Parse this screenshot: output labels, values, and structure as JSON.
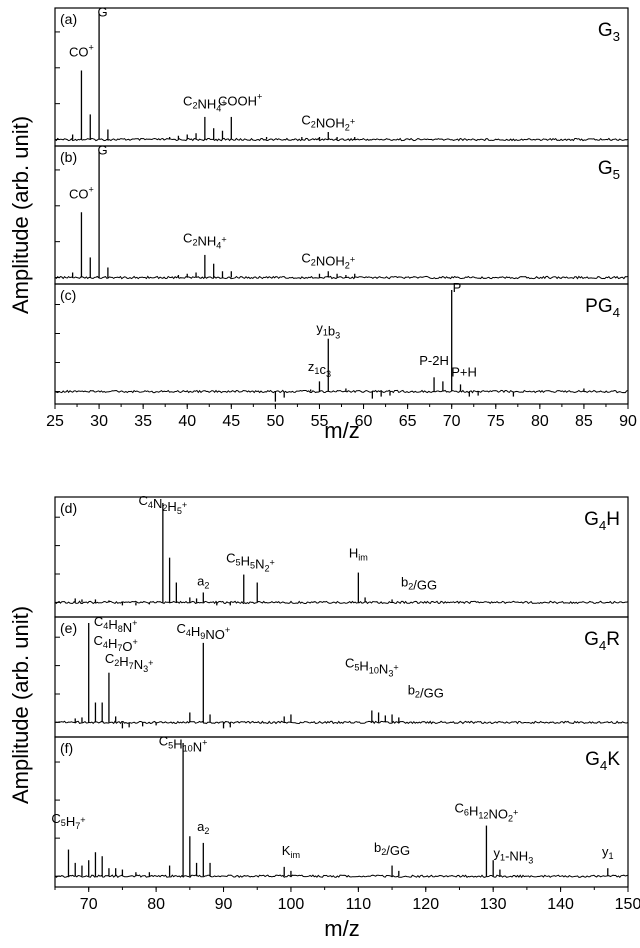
{
  "y_axis_label": "Amplitude (arb. unit)",
  "x_axis_label": "m/z",
  "chart_data": [
    {
      "type": "line",
      "xlim": [
        25,
        90
      ],
      "x_ticks": [
        25,
        30,
        35,
        40,
        45,
        50,
        55,
        60,
        65,
        70,
        75,
        80,
        85,
        90
      ],
      "panels": [
        {
          "label": "(a)",
          "sample": "G",
          "sample_sub": "3",
          "baseline": 0.02,
          "peaks": [
            [
              27,
              0.04
            ],
            [
              28,
              0.55
            ],
            [
              29,
              0.2
            ],
            [
              30,
              1.0
            ],
            [
              31,
              0.08
            ],
            [
              38,
              0.02
            ],
            [
              39,
              0.03
            ],
            [
              40,
              0.04
            ],
            [
              41,
              0.05
            ],
            [
              42,
              0.18
            ],
            [
              43,
              0.09
            ],
            [
              44,
              0.07
            ],
            [
              45,
              0.18
            ],
            [
              49,
              0.02
            ],
            [
              53,
              0.02
            ],
            [
              55,
              0.02
            ],
            [
              56,
              0.06
            ],
            [
              57,
              0.02
            ],
            [
              59,
              0.02
            ]
          ],
          "annotations": [
            {
              "x": 28,
              "y": 0.66,
              "text": "CO",
              "sup": "+"
            },
            {
              "x": 30.4,
              "y": 0.98,
              "text": "G"
            },
            {
              "x": 42,
              "y": 0.27,
              "text": "C",
              "sub": "2",
              "text2": "NH",
              "sub2": "4",
              "sup": "+"
            },
            {
              "x": 46,
              "y": 0.27,
              "text": "COOH",
              "sup": "+"
            },
            {
              "x": 56,
              "y": 0.12,
              "text": "C",
              "sub": "2",
              "text2": "NOH",
              "sub2": "2",
              "sup": "+"
            }
          ]
        },
        {
          "label": "(b)",
          "sample": "G",
          "sample_sub": "5",
          "baseline": 0.02,
          "peaks": [
            [
              27,
              0.04
            ],
            [
              28,
              0.52
            ],
            [
              29,
              0.16
            ],
            [
              30,
              1.0
            ],
            [
              31,
              0.08
            ],
            [
              39,
              0.02
            ],
            [
              40,
              0.03
            ],
            [
              41,
              0.04
            ],
            [
              42,
              0.18
            ],
            [
              43,
              0.11
            ],
            [
              44,
              0.05
            ],
            [
              45,
              0.05
            ],
            [
              55,
              0.03
            ],
            [
              56,
              0.05
            ],
            [
              57,
              0.03
            ],
            [
              58,
              0.02
            ],
            [
              59,
              0.03
            ]
          ],
          "annotations": [
            {
              "x": 28,
              "y": 0.63,
              "text": "CO",
              "sup": "+"
            },
            {
              "x": 30.4,
              "y": 0.98,
              "text": "G"
            },
            {
              "x": 42,
              "y": 0.28,
              "text": "C",
              "sub": "2",
              "text2": "NH",
              "sub2": "4",
              "sup": "+"
            },
            {
              "x": 56,
              "y": 0.12,
              "text": "C",
              "sub": "2",
              "text2": "NOH",
              "sub2": "2",
              "sup": "+"
            }
          ]
        },
        {
          "label": "(c)",
          "sample": "PG",
          "sample_sub": "4",
          "baseline": 0.08,
          "peaks": [
            [
              50,
              -0.1
            ],
            [
              51,
              -0.06
            ],
            [
              54,
              0.02
            ],
            [
              55,
              0.1
            ],
            [
              56,
              0.52
            ],
            [
              58,
              0.03
            ],
            [
              61,
              -0.07
            ],
            [
              62,
              -0.05
            ],
            [
              63,
              -0.04
            ],
            [
              68,
              0.14
            ],
            [
              69,
              0.1
            ],
            [
              70,
              1.0
            ],
            [
              71,
              0.07
            ],
            [
              72,
              -0.05
            ],
            [
              73,
              -0.04
            ],
            [
              77,
              -0.05
            ],
            [
              85,
              0.03
            ]
          ],
          "annotations": [
            {
              "x": 56,
              "y": 0.58,
              "text": "y",
              "sub": "1",
              "text2": "b",
              "sub2": "3"
            },
            {
              "x": 55,
              "y": 0.2,
              "text": "z",
              "sub": "1",
              "text2": "c",
              "sub2": "3"
            },
            {
              "x": 68,
              "y": 0.26,
              "text": "P-2H"
            },
            {
              "x": 70.6,
              "y": 0.98,
              "text": "P"
            },
            {
              "x": 71.4,
              "y": 0.15,
              "text": "P+H"
            }
          ]
        }
      ]
    },
    {
      "type": "line",
      "xlim": [
        65,
        150
      ],
      "x_ticks": [
        70,
        80,
        90,
        100,
        110,
        120,
        130,
        140,
        150
      ],
      "panels": [
        {
          "label": "(d)",
          "sample": "G",
          "sample_sub": "4",
          "sample2": "H",
          "baseline": 0.1,
          "peaks": [
            [
              68,
              0.04
            ],
            [
              69,
              0.03
            ],
            [
              71,
              0.03
            ],
            [
              73,
              0.02
            ],
            [
              75,
              -0.03
            ],
            [
              77,
              -0.03
            ],
            [
              79,
              -0.02
            ],
            [
              81,
              1.0
            ],
            [
              82,
              0.45
            ],
            [
              83,
              0.2
            ],
            [
              85,
              0.05
            ],
            [
              86,
              0.04
            ],
            [
              87,
              0.1
            ],
            [
              89,
              -0.03
            ],
            [
              91,
              -0.03
            ],
            [
              93,
              0.28
            ],
            [
              95,
              0.2
            ],
            [
              110,
              0.3
            ],
            [
              111,
              0.05
            ],
            [
              115,
              0.03
            ]
          ],
          "annotations": [
            {
              "x": 81,
              "y": 0.98,
              "text": "C",
              "sub": "4",
              "text2": "N",
              "sub2": "2",
              "text3": "H",
              "sub3": "5",
              "sup": "+"
            },
            {
              "x": 87,
              "y": 0.17,
              "text": "a",
              "sub": "2"
            },
            {
              "x": 94,
              "y": 0.4,
              "text": "C",
              "sub": "5",
              "text2": "H",
              "sub2": "5",
              "text3": "N",
              "sub3": "2",
              "sup": "+"
            },
            {
              "x": 110,
              "y": 0.45,
              "text": "H",
              "sub": "im"
            },
            {
              "x": 119,
              "y": 0.16,
              "text": "b",
              "sub": "2",
              "text2": "/GG"
            }
          ]
        },
        {
          "label": "(e)",
          "sample": "G",
          "sample_sub": "4",
          "sample2": "R",
          "baseline": 0.1,
          "peaks": [
            [
              68,
              0.04
            ],
            [
              69,
              0.05
            ],
            [
              70,
              1.0
            ],
            [
              71,
              0.2
            ],
            [
              72,
              0.2
            ],
            [
              73,
              0.5
            ],
            [
              74,
              0.06
            ],
            [
              75,
              -0.06
            ],
            [
              76,
              -0.05
            ],
            [
              78,
              -0.04
            ],
            [
              80,
              -0.03
            ],
            [
              85,
              0.1
            ],
            [
              87,
              0.8
            ],
            [
              88,
              0.08
            ],
            [
              90,
              -0.06
            ],
            [
              91,
              -0.05
            ],
            [
              99,
              0.06
            ],
            [
              100,
              0.08
            ],
            [
              112,
              0.12
            ],
            [
              113,
              0.1
            ],
            [
              114,
              0.07
            ],
            [
              115,
              0.08
            ],
            [
              116,
              0.05
            ]
          ],
          "annotations": [
            {
              "x": 74,
              "y": 0.97,
              "text": "C",
              "sub": "4",
              "text2": "H",
              "sub2": "8",
              "text3": "N",
              "sup": "+"
            },
            {
              "x": 74,
              "y": 0.78,
              "text": "C",
              "sub": "4",
              "text2": "H",
              "sub2": "7",
              "text3": "O",
              "sup": "+"
            },
            {
              "x": 76,
              "y": 0.6,
              "text": "C",
              "sub": "2",
              "text2": "H",
              "sub2": "7",
              "text3": "N",
              "sub3": "3",
              "sup": "+"
            },
            {
              "x": 87,
              "y": 0.9,
              "text": "C",
              "sub": "4",
              "text2": "H",
              "sub2": "9",
              "text3": "NO",
              "sup": "+"
            },
            {
              "x": 112,
              "y": 0.55,
              "text": "C",
              "sub": "5",
              "text2": "H",
              "sub2": "10",
              "text3": "N",
              "sub3": "3",
              "sup": "+"
            },
            {
              "x": 120,
              "y": 0.28,
              "text": "b",
              "sub": "2",
              "text2": "/GG"
            }
          ]
        },
        {
          "label": "(f)",
          "sample": "G",
          "sample_sub": "4",
          "sample2": "K",
          "baseline": 0.05,
          "peaks": [
            [
              67,
              0.2
            ],
            [
              68,
              0.1
            ],
            [
              69,
              0.08
            ],
            [
              70,
              0.12
            ],
            [
              71,
              0.18
            ],
            [
              72,
              0.15
            ],
            [
              73,
              0.06
            ],
            [
              74,
              0.06
            ],
            [
              75,
              0.05
            ],
            [
              77,
              0.03
            ],
            [
              79,
              0.03
            ],
            [
              82,
              0.08
            ],
            [
              84,
              1.0
            ],
            [
              85,
              0.3
            ],
            [
              86,
              0.1
            ],
            [
              87,
              0.25
            ],
            [
              88,
              0.1
            ],
            [
              99,
              0.07
            ],
            [
              100,
              0.04
            ],
            [
              115,
              0.08
            ],
            [
              116,
              0.04
            ],
            [
              129,
              0.38
            ],
            [
              130,
              0.12
            ],
            [
              131,
              0.05
            ],
            [
              147,
              0.06
            ]
          ],
          "annotations": [
            {
              "x": 67,
              "y": 0.4,
              "text": "C",
              "sub": "5",
              "text2": "H",
              "sub2": "7",
              "sup": "+"
            },
            {
              "x": 84,
              "y": 0.98,
              "text": "C",
              "sub": "5",
              "text2": "H",
              "sub2": "10",
              "text3": "N",
              "sup": "+"
            },
            {
              "x": 87,
              "y": 0.34,
              "text": "a",
              "sub": "2"
            },
            {
              "x": 100,
              "y": 0.16,
              "text": "K",
              "sub": "im"
            },
            {
              "x": 115,
              "y": 0.18,
              "text": "b",
              "sub": "2",
              "text2": "/GG"
            },
            {
              "x": 129,
              "y": 0.48,
              "text": "C",
              "sub": "6",
              "text2": "H",
              "sub2": "12",
              "text3": "NO",
              "sub3": "2",
              "sup": "+"
            },
            {
              "x": 133,
              "y": 0.14,
              "text": "y",
              "sub": "1",
              "text2": "-NH",
              "sub2": "3"
            },
            {
              "x": 147,
              "y": 0.15,
              "text": "y",
              "sub": "1"
            }
          ]
        }
      ]
    }
  ]
}
